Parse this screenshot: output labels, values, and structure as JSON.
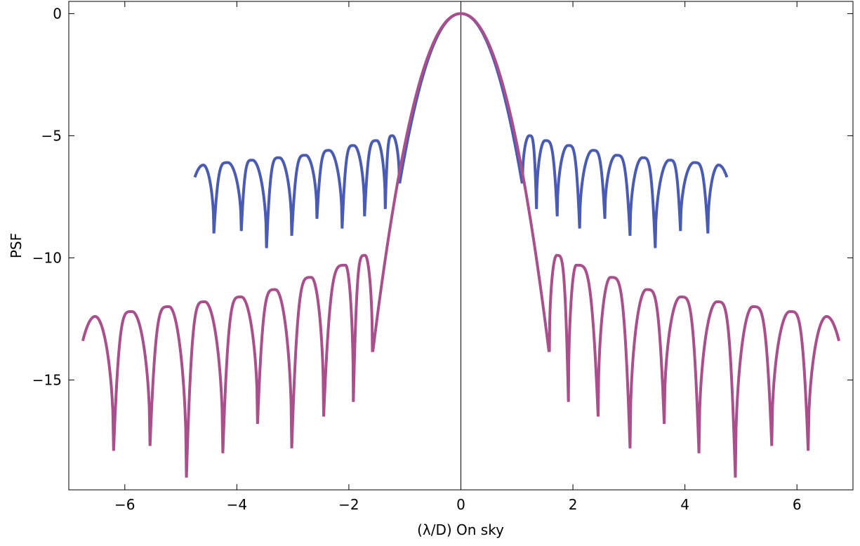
{
  "chart_data": {
    "type": "line",
    "title": "",
    "xlabel": "(λ/D) On sky",
    "ylabel": "PSF",
    "xlim": [
      -7,
      7
    ],
    "ylim": [
      -19.5,
      0.5
    ],
    "xticks": [
      -6,
      -4,
      -2,
      0,
      2,
      4,
      6
    ],
    "yticks": [
      0,
      -5,
      -10,
      -15
    ],
    "xtick_labels": [
      "−6",
      "−4",
      "−2",
      "0",
      "2",
      "4",
      "6"
    ],
    "ytick_labels": [
      "0",
      "−5",
      "−10",
      "−15"
    ],
    "grid": false,
    "legend": "none",
    "series": [
      {
        "color": "#4a5bb3",
        "x_range": [
          -4.75,
          4.75
        ],
        "main_lobe_edge": 1.09,
        "sidelobes": [
          {
            "x": 1.22,
            "y": -5.0,
            "null_x": 1.1,
            "null_y": -6.9
          },
          {
            "x": 1.5,
            "y": -5.2,
            "null_x": 1.35,
            "null_y": -8.0
          },
          {
            "x": 1.91,
            "y": -5.4,
            "null_x": 1.72,
            "null_y": -8.3
          },
          {
            "x": 2.35,
            "y": -5.6,
            "null_x": 2.12,
            "null_y": -8.8
          },
          {
            "x": 2.77,
            "y": -5.8,
            "null_x": 2.57,
            "null_y": -8.4
          },
          {
            "x": 3.24,
            "y": -5.9,
            "null_x": 3.02,
            "null_y": -9.1
          },
          {
            "x": 3.72,
            "y": -6.0,
            "null_x": 3.47,
            "null_y": -9.6
          },
          {
            "x": 4.16,
            "y": -6.1,
            "null_x": 3.92,
            "null_y": -8.9
          },
          {
            "x": 4.6,
            "y": -6.2,
            "null_x": 4.41,
            "null_y": -9.0
          }
        ],
        "end_y": -6.7
      },
      {
        "color": "#a84f8c",
        "x_range": [
          -6.75,
          6.75
        ],
        "main_lobe_edge": 1.57,
        "sidelobes": [
          {
            "x": 1.71,
            "y": -9.9,
            "null_x": 1.58,
            "null_y": -13.8
          },
          {
            "x": 2.06,
            "y": -10.3,
            "null_x": 1.92,
            "null_y": -15.9
          },
          {
            "x": 2.67,
            "y": -10.8,
            "null_x": 2.45,
            "null_y": -16.5
          },
          {
            "x": 3.31,
            "y": -11.3,
            "null_x": 3.02,
            "null_y": -17.8
          },
          {
            "x": 3.92,
            "y": -11.6,
            "null_x": 3.63,
            "null_y": -16.8
          },
          {
            "x": 4.57,
            "y": -11.8,
            "null_x": 4.25,
            "null_y": -18.0
          },
          {
            "x": 5.21,
            "y": -12.0,
            "null_x": 4.9,
            "null_y": -19.0
          },
          {
            "x": 5.87,
            "y": -12.2,
            "null_x": 5.55,
            "null_y": -17.7
          },
          {
            "x": 6.53,
            "y": -12.4,
            "null_x": 6.2,
            "null_y": -17.9
          }
        ],
        "end_y": -13.4
      }
    ]
  }
}
